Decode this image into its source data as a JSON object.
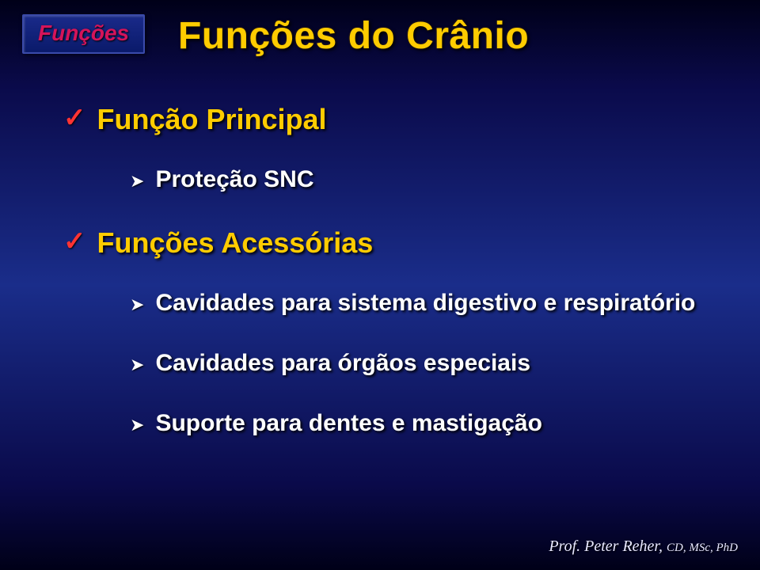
{
  "badge": {
    "label": "Funções"
  },
  "title": "Funções do Crânio",
  "sections": [
    {
      "heading": "Função Principal",
      "items": [
        "Proteção SNC"
      ]
    },
    {
      "heading": "Funções Acessórias",
      "items": [
        "Cavidades para sistema digestivo e respiratório",
        "Cavidades para órgãos especiais",
        "Suporte para dentes e mastigação"
      ]
    }
  ],
  "footer": {
    "name": "Prof. Peter Reher, ",
    "credentials": "CD, MSc, PhD"
  },
  "style": {
    "background_gradient": [
      "#000018",
      "#1a2d8a",
      "#000018"
    ],
    "title_color": "#ffcc00",
    "heading_color": "#ffcc00",
    "body_color": "#ffffff",
    "checkmark_color": "#ff3333",
    "badge_text_color": "#d4145a",
    "badge_bg": "#0a1a6a",
    "title_fontsize": 48,
    "heading_fontsize": 36,
    "body_fontsize": 30,
    "badge_fontsize": 28,
    "footer_fontsize": 20
  }
}
